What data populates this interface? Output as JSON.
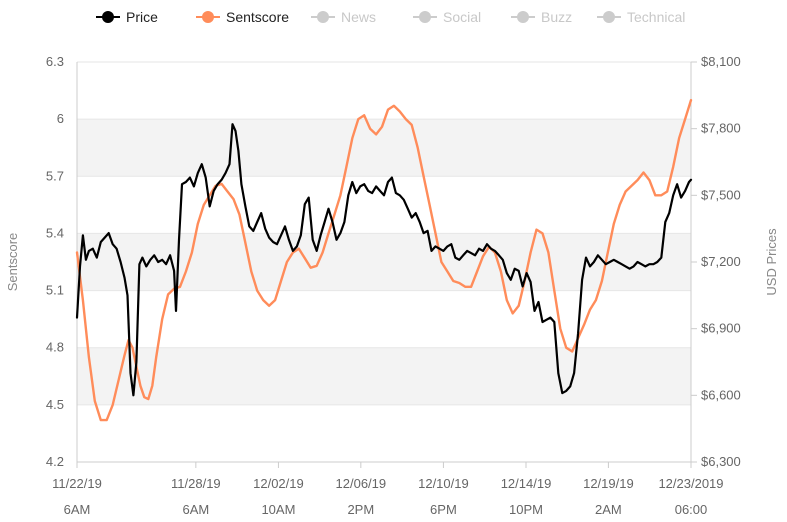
{
  "chart_data": {
    "type": "line",
    "legend": {
      "placement": "top",
      "items": [
        {
          "name": "Price",
          "color": "#000000",
          "active": true
        },
        {
          "name": "Sentscore",
          "color": "#ff8c5a",
          "active": true
        },
        {
          "name": "News",
          "color": "#cccccc",
          "active": false
        },
        {
          "name": "Social",
          "color": "#cccccc",
          "active": false
        },
        {
          "name": "Buzz",
          "color": "#cccccc",
          "active": false
        },
        {
          "name": "Technical",
          "color": "#cccccc",
          "active": false
        }
      ]
    },
    "x_ticks": [
      {
        "date": "11/22/19",
        "time": "6AM"
      },
      {
        "date": "11/28/19",
        "time": "6AM"
      },
      {
        "date": "12/02/19",
        "time": "10AM"
      },
      {
        "date": "12/06/19",
        "time": "2PM"
      },
      {
        "date": "12/10/19",
        "time": "6PM"
      },
      {
        "date": "12/14/19",
        "time": "10PM"
      },
      {
        "date": "12/19/19",
        "time": "2AM"
      },
      {
        "date": "12/23/2019",
        "time": "06:00"
      }
    ],
    "x_tick_positions": [
      0,
      6,
      10.17,
      14.33,
      18.5,
      22.67,
      26.83,
      31
    ],
    "xlim": [
      0,
      31
    ],
    "y_left": {
      "title": "Sentscore",
      "range": [
        4.2,
        6.3
      ],
      "ticks": [
        "4.2",
        "4.5",
        "4.8",
        "5.1",
        "5.4",
        "5.7",
        "6",
        "6.3"
      ]
    },
    "y_right": {
      "title": "USD Prices",
      "range": [
        6300,
        8100
      ],
      "ticks": [
        "$6,300",
        "$6,600",
        "$6,900",
        "$7,200",
        "$7,500",
        "$7,800",
        "$8,100"
      ]
    },
    "series": [
      {
        "name": "Sentscore",
        "axis": "left",
        "color": "#ff8c5a",
        "points": [
          [
            0,
            5.3
          ],
          [
            0.3,
            5.05
          ],
          [
            0.6,
            4.75
          ],
          [
            0.9,
            4.52
          ],
          [
            1.2,
            4.42
          ],
          [
            1.5,
            4.42
          ],
          [
            1.8,
            4.5
          ],
          [
            2.1,
            4.63
          ],
          [
            2.4,
            4.76
          ],
          [
            2.6,
            4.84
          ],
          [
            2.8,
            4.8
          ],
          [
            3.0,
            4.7
          ],
          [
            3.2,
            4.6
          ],
          [
            3.4,
            4.54
          ],
          [
            3.6,
            4.53
          ],
          [
            3.8,
            4.6
          ],
          [
            4.0,
            4.75
          ],
          [
            4.3,
            4.95
          ],
          [
            4.6,
            5.08
          ],
          [
            4.9,
            5.11
          ],
          [
            5.2,
            5.12
          ],
          [
            5.5,
            5.2
          ],
          [
            5.8,
            5.3
          ],
          [
            6.1,
            5.45
          ],
          [
            6.4,
            5.55
          ],
          [
            6.7,
            5.6
          ],
          [
            7.0,
            5.65
          ],
          [
            7.3,
            5.66
          ],
          [
            7.6,
            5.62
          ],
          [
            7.9,
            5.58
          ],
          [
            8.2,
            5.5
          ],
          [
            8.5,
            5.35
          ],
          [
            8.8,
            5.2
          ],
          [
            9.1,
            5.1
          ],
          [
            9.4,
            5.05
          ],
          [
            9.7,
            5.02
          ],
          [
            10.0,
            5.05
          ],
          [
            10.3,
            5.15
          ],
          [
            10.6,
            5.25
          ],
          [
            10.9,
            5.3
          ],
          [
            11.2,
            5.32
          ],
          [
            11.5,
            5.27
          ],
          [
            11.8,
            5.22
          ],
          [
            12.1,
            5.23
          ],
          [
            12.4,
            5.3
          ],
          [
            12.7,
            5.4
          ],
          [
            13.0,
            5.5
          ],
          [
            13.3,
            5.6
          ],
          [
            13.6,
            5.75
          ],
          [
            13.9,
            5.9
          ],
          [
            14.2,
            6.0
          ],
          [
            14.5,
            6.02
          ],
          [
            14.8,
            5.95
          ],
          [
            15.1,
            5.92
          ],
          [
            15.4,
            5.96
          ],
          [
            15.7,
            6.05
          ],
          [
            16.0,
            6.07
          ],
          [
            16.3,
            6.04
          ],
          [
            16.6,
            6.0
          ],
          [
            16.9,
            5.97
          ],
          [
            17.2,
            5.85
          ],
          [
            17.5,
            5.7
          ],
          [
            17.8,
            5.55
          ],
          [
            18.1,
            5.4
          ],
          [
            18.4,
            5.25
          ],
          [
            18.7,
            5.2
          ],
          [
            19.0,
            5.15
          ],
          [
            19.3,
            5.14
          ],
          [
            19.6,
            5.12
          ],
          [
            19.9,
            5.12
          ],
          [
            20.2,
            5.2
          ],
          [
            20.5,
            5.28
          ],
          [
            20.8,
            5.33
          ],
          [
            21.1,
            5.3
          ],
          [
            21.4,
            5.2
          ],
          [
            21.7,
            5.05
          ],
          [
            22.0,
            4.98
          ],
          [
            22.3,
            5.02
          ],
          [
            22.6,
            5.15
          ],
          [
            22.9,
            5.3
          ],
          [
            23.2,
            5.42
          ],
          [
            23.5,
            5.4
          ],
          [
            23.8,
            5.3
          ],
          [
            24.1,
            5.1
          ],
          [
            24.4,
            4.9
          ],
          [
            24.7,
            4.8
          ],
          [
            25.0,
            4.78
          ],
          [
            25.3,
            4.85
          ],
          [
            25.6,
            4.92
          ],
          [
            25.9,
            5.0
          ],
          [
            26.2,
            5.05
          ],
          [
            26.5,
            5.15
          ],
          [
            26.8,
            5.3
          ],
          [
            27.1,
            5.45
          ],
          [
            27.4,
            5.55
          ],
          [
            27.7,
            5.62
          ],
          [
            28.0,
            5.65
          ],
          [
            28.3,
            5.68
          ],
          [
            28.6,
            5.72
          ],
          [
            28.9,
            5.68
          ],
          [
            29.2,
            5.6
          ],
          [
            29.5,
            5.6
          ],
          [
            29.8,
            5.62
          ],
          [
            30.1,
            5.75
          ],
          [
            30.4,
            5.9
          ],
          [
            30.7,
            6.0
          ],
          [
            31.0,
            6.1
          ]
        ]
      },
      {
        "name": "Price",
        "axis": "right",
        "color": "#000000",
        "points": [
          [
            0,
            6950
          ],
          [
            0.15,
            7180
          ],
          [
            0.3,
            7320
          ],
          [
            0.45,
            7210
          ],
          [
            0.6,
            7250
          ],
          [
            0.8,
            7260
          ],
          [
            1.0,
            7220
          ],
          [
            1.2,
            7290
          ],
          [
            1.4,
            7310
          ],
          [
            1.6,
            7330
          ],
          [
            1.8,
            7280
          ],
          [
            2.0,
            7260
          ],
          [
            2.2,
            7200
          ],
          [
            2.4,
            7130
          ],
          [
            2.55,
            7050
          ],
          [
            2.7,
            6700
          ],
          [
            2.85,
            6600
          ],
          [
            3.0,
            6750
          ],
          [
            3.15,
            7190
          ],
          [
            3.3,
            7220
          ],
          [
            3.5,
            7180
          ],
          [
            3.7,
            7210
          ],
          [
            3.9,
            7230
          ],
          [
            4.1,
            7200
          ],
          [
            4.3,
            7210
          ],
          [
            4.5,
            7190
          ],
          [
            4.7,
            7230
          ],
          [
            4.9,
            7160
          ],
          [
            5.0,
            6980
          ],
          [
            5.15,
            7300
          ],
          [
            5.3,
            7550
          ],
          [
            5.5,
            7560
          ],
          [
            5.7,
            7580
          ],
          [
            5.9,
            7540
          ],
          [
            6.1,
            7600
          ],
          [
            6.3,
            7640
          ],
          [
            6.5,
            7580
          ],
          [
            6.7,
            7450
          ],
          [
            6.9,
            7520
          ],
          [
            7.1,
            7550
          ],
          [
            7.3,
            7570
          ],
          [
            7.5,
            7600
          ],
          [
            7.7,
            7640
          ],
          [
            7.85,
            7820
          ],
          [
            8.0,
            7790
          ],
          [
            8.15,
            7700
          ],
          [
            8.3,
            7550
          ],
          [
            8.5,
            7450
          ],
          [
            8.7,
            7360
          ],
          [
            8.9,
            7340
          ],
          [
            9.1,
            7380
          ],
          [
            9.3,
            7420
          ],
          [
            9.5,
            7350
          ],
          [
            9.7,
            7310
          ],
          [
            9.9,
            7290
          ],
          [
            10.1,
            7280
          ],
          [
            10.3,
            7320
          ],
          [
            10.5,
            7360
          ],
          [
            10.7,
            7300
          ],
          [
            10.9,
            7250
          ],
          [
            11.1,
            7270
          ],
          [
            11.3,
            7320
          ],
          [
            11.5,
            7460
          ],
          [
            11.7,
            7490
          ],
          [
            11.9,
            7300
          ],
          [
            12.1,
            7250
          ],
          [
            12.3,
            7320
          ],
          [
            12.5,
            7380
          ],
          [
            12.7,
            7440
          ],
          [
            12.9,
            7380
          ],
          [
            13.1,
            7300
          ],
          [
            13.3,
            7330
          ],
          [
            13.5,
            7380
          ],
          [
            13.7,
            7500
          ],
          [
            13.9,
            7560
          ],
          [
            14.1,
            7510
          ],
          [
            14.3,
            7540
          ],
          [
            14.5,
            7550
          ],
          [
            14.7,
            7520
          ],
          [
            14.9,
            7510
          ],
          [
            15.1,
            7540
          ],
          [
            15.3,
            7520
          ],
          [
            15.5,
            7500
          ],
          [
            15.7,
            7560
          ],
          [
            15.9,
            7580
          ],
          [
            16.1,
            7510
          ],
          [
            16.3,
            7500
          ],
          [
            16.5,
            7480
          ],
          [
            16.7,
            7440
          ],
          [
            16.9,
            7400
          ],
          [
            17.1,
            7420
          ],
          [
            17.3,
            7380
          ],
          [
            17.5,
            7330
          ],
          [
            17.7,
            7340
          ],
          [
            17.9,
            7250
          ],
          [
            18.1,
            7270
          ],
          [
            18.3,
            7260
          ],
          [
            18.5,
            7250
          ],
          [
            18.7,
            7270
          ],
          [
            18.9,
            7280
          ],
          [
            19.1,
            7220
          ],
          [
            19.3,
            7210
          ],
          [
            19.5,
            7230
          ],
          [
            19.7,
            7250
          ],
          [
            19.9,
            7240
          ],
          [
            20.1,
            7230
          ],
          [
            20.3,
            7260
          ],
          [
            20.5,
            7250
          ],
          [
            20.7,
            7280
          ],
          [
            20.9,
            7260
          ],
          [
            21.1,
            7250
          ],
          [
            21.3,
            7230
          ],
          [
            21.5,
            7210
          ],
          [
            21.7,
            7150
          ],
          [
            21.9,
            7120
          ],
          [
            22.1,
            7170
          ],
          [
            22.3,
            7160
          ],
          [
            22.5,
            7090
          ],
          [
            22.7,
            7150
          ],
          [
            22.9,
            7110
          ],
          [
            23.1,
            6980
          ],
          [
            23.3,
            7020
          ],
          [
            23.5,
            6930
          ],
          [
            23.7,
            6940
          ],
          [
            23.9,
            6950
          ],
          [
            24.1,
            6930
          ],
          [
            24.3,
            6700
          ],
          [
            24.5,
            6610
          ],
          [
            24.7,
            6620
          ],
          [
            24.9,
            6640
          ],
          [
            25.1,
            6700
          ],
          [
            25.3,
            6880
          ],
          [
            25.5,
            7120
          ],
          [
            25.7,
            7220
          ],
          [
            25.9,
            7180
          ],
          [
            26.1,
            7200
          ],
          [
            26.3,
            7230
          ],
          [
            26.5,
            7210
          ],
          [
            26.7,
            7190
          ],
          [
            26.9,
            7200
          ],
          [
            27.1,
            7210
          ],
          [
            27.3,
            7200
          ],
          [
            27.5,
            7190
          ],
          [
            27.7,
            7180
          ],
          [
            27.9,
            7170
          ],
          [
            28.1,
            7180
          ],
          [
            28.3,
            7200
          ],
          [
            28.5,
            7190
          ],
          [
            28.7,
            7180
          ],
          [
            28.9,
            7190
          ],
          [
            29.1,
            7190
          ],
          [
            29.3,
            7200
          ],
          [
            29.5,
            7220
          ],
          [
            29.7,
            7380
          ],
          [
            29.9,
            7420
          ],
          [
            30.1,
            7500
          ],
          [
            30.3,
            7550
          ],
          [
            30.5,
            7490
          ],
          [
            30.7,
            7520
          ],
          [
            30.9,
            7560
          ],
          [
            31.0,
            7570
          ]
        ]
      }
    ],
    "grid": true
  }
}
